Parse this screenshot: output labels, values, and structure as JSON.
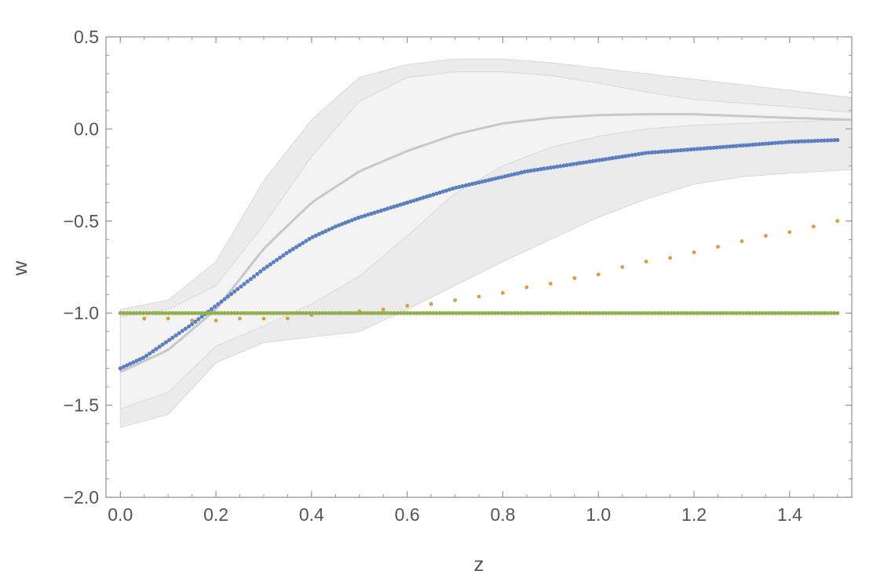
{
  "chart_data": {
    "type": "scatter",
    "title": "",
    "xlabel": "z",
    "ylabel": "w",
    "xlim": [
      -0.03,
      1.53
    ],
    "ylim": [
      -2.0,
      0.5
    ],
    "x_ticks": [
      0.0,
      0.2,
      0.4,
      0.6,
      0.8,
      1.0,
      1.2,
      1.4
    ],
    "x_tick_labels": [
      "0.0",
      "0.2",
      "0.4",
      "0.6",
      "0.8",
      "1.0",
      "1.2",
      "1.4"
    ],
    "y_ticks": [
      0.5,
      0.0,
      -0.5,
      -1.0,
      -1.5,
      -2.0
    ],
    "y_tick_labels": [
      "0.5",
      "0.0",
      "−0.5",
      "−1.0",
      "−1.5",
      "−2.0"
    ],
    "grid": false,
    "bands": [
      {
        "name": "",
        "color": "#ebebeb",
        "x": [
          0.0,
          0.1,
          0.2,
          0.3,
          0.4,
          0.5,
          0.6,
          0.7,
          0.8,
          0.9,
          1.0,
          1.1,
          1.2,
          1.3,
          1.4,
          1.53
        ],
        "upper": [
          -0.98,
          -0.93,
          -0.72,
          -0.28,
          0.05,
          0.28,
          0.35,
          0.38,
          0.38,
          0.36,
          0.33,
          0.3,
          0.27,
          0.24,
          0.21,
          0.17
        ],
        "lower": [
          -1.62,
          -1.55,
          -1.27,
          -1.16,
          -1.13,
          -1.1,
          -0.98,
          -0.85,
          -0.72,
          -0.6,
          -0.48,
          -0.38,
          -0.3,
          -0.26,
          -0.24,
          -0.22
        ]
      },
      {
        "name": "",
        "color": "#f3f3f3",
        "x": [
          0.0,
          0.1,
          0.2,
          0.3,
          0.4,
          0.5,
          0.6,
          0.7,
          0.8,
          0.9,
          1.0,
          1.1,
          1.2,
          1.3,
          1.4,
          1.53
        ],
        "upper": [
          -1.02,
          -0.98,
          -0.85,
          -0.52,
          -0.15,
          0.15,
          0.28,
          0.31,
          0.31,
          0.29,
          0.25,
          0.2,
          0.16,
          0.14,
          0.12,
          0.09
        ],
        "lower": [
          -1.52,
          -1.43,
          -1.18,
          -1.07,
          -0.95,
          -0.8,
          -0.58,
          -0.35,
          -0.2,
          -0.1,
          -0.04,
          0.0,
          0.02,
          0.03,
          0.04,
          0.05
        ]
      }
    ],
    "series": [
      {
        "name": "",
        "style": "line",
        "color": "#c8c8c8",
        "x": [
          0.0,
          0.1,
          0.2,
          0.3,
          0.4,
          0.5,
          0.6,
          0.7,
          0.8,
          0.9,
          1.0,
          1.1,
          1.2,
          1.3,
          1.4,
          1.53
        ],
        "y": [
          -1.32,
          -1.2,
          -0.98,
          -0.65,
          -0.4,
          -0.23,
          -0.12,
          -0.03,
          0.03,
          0.06,
          0.075,
          0.08,
          0.08,
          0.07,
          0.06,
          0.05
        ]
      },
      {
        "name": "",
        "style": "dense-dots",
        "color": "#5b7fbf",
        "x": [
          0.0,
          0.05,
          0.1,
          0.15,
          0.2,
          0.25,
          0.3,
          0.35,
          0.4,
          0.45,
          0.5,
          0.55,
          0.6,
          0.65,
          0.7,
          0.75,
          0.8,
          0.85,
          0.9,
          0.95,
          1.0,
          1.05,
          1.1,
          1.15,
          1.2,
          1.25,
          1.3,
          1.35,
          1.4,
          1.45,
          1.5
        ],
        "y": [
          -1.3,
          -1.24,
          -1.15,
          -1.06,
          -0.96,
          -0.86,
          -0.76,
          -0.67,
          -0.59,
          -0.53,
          -0.48,
          -0.44,
          -0.4,
          -0.36,
          -0.32,
          -0.29,
          -0.26,
          -0.23,
          -0.21,
          -0.19,
          -0.17,
          -0.15,
          -0.13,
          -0.12,
          -0.11,
          -0.1,
          -0.09,
          -0.08,
          -0.07,
          -0.065,
          -0.06
        ]
      },
      {
        "name": "",
        "style": "sparse-dots",
        "color": "#e09b3d",
        "x": [
          0.0,
          0.05,
          0.1,
          0.15,
          0.2,
          0.25,
          0.3,
          0.35,
          0.4,
          0.45,
          0.5,
          0.55,
          0.6,
          0.65,
          0.7,
          0.75,
          0.8,
          0.85,
          0.9,
          0.95,
          1.0,
          1.05,
          1.1,
          1.15,
          1.2,
          1.25,
          1.3,
          1.35,
          1.4,
          1.45,
          1.5
        ],
        "y": [
          -1.0,
          -1.03,
          -1.03,
          -1.04,
          -1.04,
          -1.03,
          -1.03,
          -1.03,
          -1.01,
          -1.0,
          -0.99,
          -0.98,
          -0.96,
          -0.95,
          -0.93,
          -0.91,
          -0.89,
          -0.86,
          -0.84,
          -0.81,
          -0.79,
          -0.75,
          -0.72,
          -0.7,
          -0.67,
          -0.64,
          -0.61,
          -0.58,
          -0.56,
          -0.53,
          -0.5
        ]
      },
      {
        "name": "",
        "style": "dense-dots",
        "color": "#8fb04a",
        "x": [
          0.0,
          1.5
        ],
        "y": [
          -1.0,
          -1.0
        ]
      }
    ]
  }
}
